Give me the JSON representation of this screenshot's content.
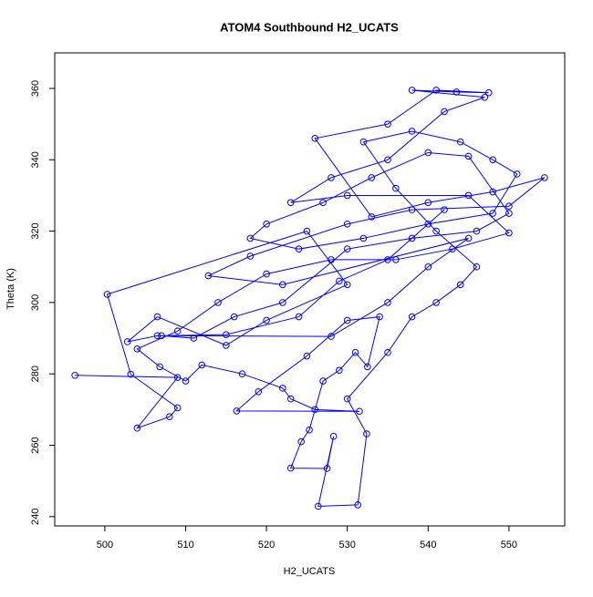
{
  "chart_data": {
    "type": "line",
    "title": "ATOM4 Southbound H2_UCATS",
    "x_label": "H2_UCATS",
    "y_label": "Theta (K)",
    "color": "#0000ff",
    "markers": true,
    "x": [
      496.3,
      509,
      504,
      508,
      509,
      503.2,
      500.3,
      525,
      530,
      520,
      515,
      506.5,
      502.8,
      506.5,
      528,
      535,
      540,
      545,
      522,
      512.8,
      518,
      530,
      538,
      550,
      554.4,
      548,
      540,
      533,
      526,
      535,
      541,
      547.5,
      543.5,
      538,
      547,
      542,
      535,
      528,
      523,
      530,
      545,
      550,
      543,
      536,
      528,
      520,
      514,
      509,
      504,
      506.8,
      510,
      512,
      517,
      522,
      523,
      526,
      531.5,
      516.3,
      519,
      525,
      530,
      534,
      532.5,
      531,
      529,
      527,
      525.3,
      524.3,
      523,
      527.5,
      528.3,
      526.4,
      531.3,
      532.4,
      530,
      535,
      538,
      541,
      544,
      546,
      541,
      536,
      532,
      538,
      544,
      548,
      551,
      548,
      540,
      532,
      524,
      518,
      520,
      527,
      533,
      540,
      545,
      550,
      546,
      538,
      530,
      522,
      516,
      511,
      507,
      515,
      524,
      529,
      535,
      542
    ],
    "values": [
      279.6,
      279,
      264.8,
      268,
      270.5,
      279.9,
      302.3,
      320,
      305,
      295,
      288,
      296,
      289,
      290.7,
      290.5,
      300,
      310,
      318,
      305,
      307.5,
      313,
      322,
      326,
      327,
      335,
      331,
      328,
      324,
      346,
      350,
      359.5,
      358.8,
      359,
      359.5,
      357.5,
      353.5,
      340,
      335,
      328,
      330,
      330,
      319.5,
      315,
      312,
      312,
      308,
      300,
      292,
      287,
      282,
      278,
      282.5,
      280,
      276,
      273,
      270,
      269.5,
      269.6,
      275,
      285,
      295,
      296,
      282,
      286,
      281,
      278,
      264.3,
      261,
      253.6,
      253.5,
      262.5,
      242.9,
      243.3,
      263.2,
      273,
      286,
      296,
      300,
      305,
      310,
      320,
      332,
      345,
      348,
      345,
      340,
      336,
      325,
      322,
      318,
      315,
      318,
      322,
      328,
      335,
      342,
      341,
      325,
      320,
      318,
      315,
      300,
      296,
      290,
      290.7,
      291,
      296,
      306,
      312,
      326
    ],
    "xlim": [
      493.8,
      556.9
    ],
    "ylim": [
      237.4,
      369.96
    ],
    "xticks": [
      500,
      510,
      520,
      530,
      540,
      550
    ],
    "yticks": [
      240,
      260,
      280,
      300,
      320,
      340,
      360
    ]
  }
}
